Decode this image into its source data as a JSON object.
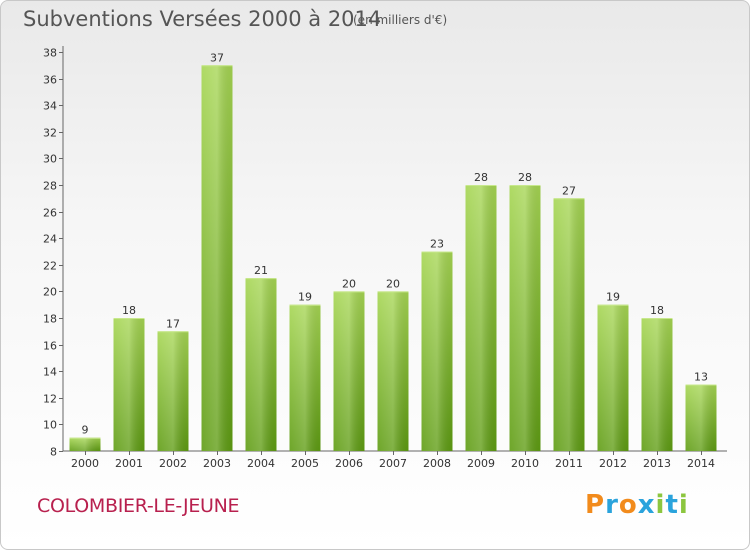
{
  "header": {
    "title": "Subventions Versées 2000 à 2014",
    "unit": "(en milliers d'€)"
  },
  "footer": {
    "commune": "COLOMBIER-LE-JEUNE",
    "logo_text": "Proxiti"
  },
  "colors": {
    "bar_top": "#a6d653",
    "bar_bottom": "#5e9c12",
    "commune": "#b8204e",
    "logo": [
      "#f28b1c",
      "#2aa3dc",
      "#f28b1c",
      "#2aa3dc",
      "#8cc63f",
      "#2aa3dc",
      "#8cc63f"
    ]
  },
  "chart_data": {
    "type": "bar",
    "title": "Subventions Versées 2000 à 2014",
    "subtitle": "(en milliers d'€)",
    "categories": [
      "2000",
      "2001",
      "2002",
      "2003",
      "2004",
      "2005",
      "2006",
      "2007",
      "2008",
      "2009",
      "2010",
      "2011",
      "2012",
      "2013",
      "2014"
    ],
    "values": [
      9,
      18,
      17,
      37,
      21,
      19,
      20,
      20,
      23,
      28,
      28,
      27,
      19,
      18,
      13
    ],
    "ylim": [
      8,
      38
    ],
    "yticks": [
      8,
      10,
      12,
      14,
      16,
      18,
      20,
      22,
      24,
      26,
      28,
      30,
      32,
      34,
      36,
      38
    ],
    "xlabel": "",
    "ylabel": "",
    "grid": false,
    "legend": "none"
  }
}
